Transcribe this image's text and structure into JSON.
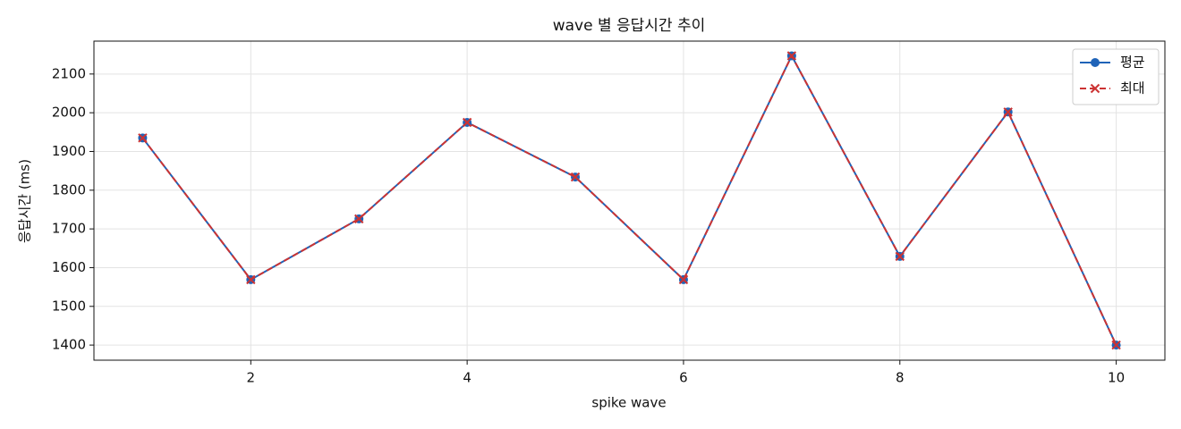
{
  "chart_data": {
    "type": "line",
    "title": "wave 별 응답시간 추이",
    "x_label": "spike wave",
    "y_label": "응답시간 (ms)",
    "x": [
      1,
      2,
      3,
      4,
      5,
      6,
      7,
      8,
      9,
      10
    ],
    "series": [
      {
        "name": "평균",
        "color": "#1f63b8",
        "marker": "o",
        "linestyle": "solid",
        "values": [
          1935,
          1569,
          1726,
          1975,
          1834,
          1569,
          2147,
          1629,
          2002,
          1400
        ]
      },
      {
        "name": "최대",
        "color": "#cc3333",
        "marker": "x",
        "linestyle": "dashed",
        "values": [
          1935,
          1569,
          1726,
          1975,
          1834,
          1569,
          2147,
          1629,
          2002,
          1400
        ]
      }
    ],
    "xlim": [
      0.55,
      10.45
    ],
    "ylim": [
      1361,
      2185
    ],
    "xticks": [
      2,
      4,
      6,
      8,
      10
    ],
    "yticks": [
      1400,
      1500,
      1600,
      1700,
      1800,
      1900,
      2000,
      2100
    ],
    "grid": true,
    "legend": "upper right"
  }
}
